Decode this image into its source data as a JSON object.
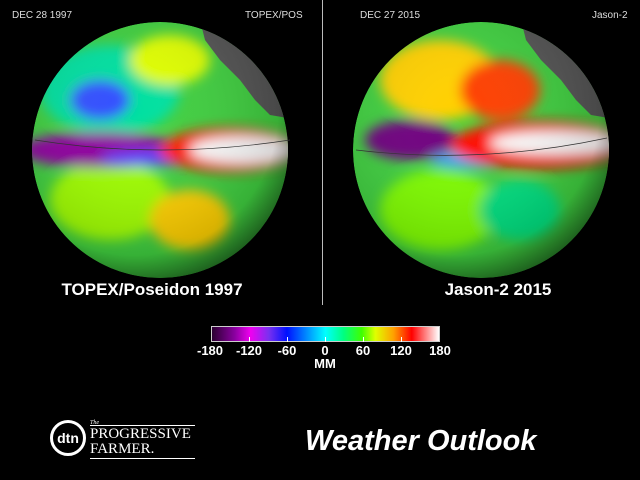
{
  "left_panel": {
    "date": "DEC 28 1997",
    "satellite": "TOPEX/POS",
    "title": "TOPEX/Poseidon 1997"
  },
  "right_panel": {
    "date": "DEC 27 2015",
    "satellite": "Jason-2",
    "title": "Jason-2 2015"
  },
  "colorbar": {
    "ticks": [
      "-180",
      "-120",
      "-60",
      "0",
      "60",
      "120",
      "180"
    ],
    "unit": "MM",
    "range": [
      -180,
      180
    ]
  },
  "logo": {
    "mark": "dtn",
    "small": "The",
    "line1": "PROGRESSIVE",
    "line2": "FARMER."
  },
  "footer_title": "Weather Outlook"
}
